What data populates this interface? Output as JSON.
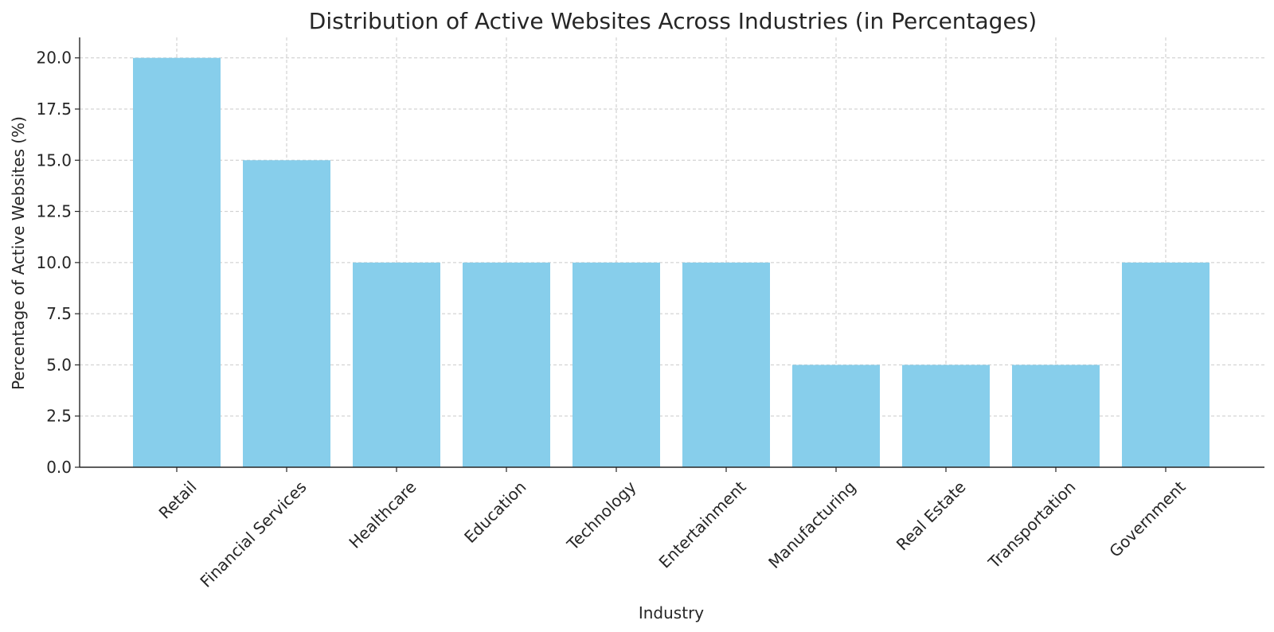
{
  "chart_data": {
    "type": "bar",
    "title": "Distribution of Active Websites Across Industries (in Percentages)",
    "xlabel": "Industry",
    "ylabel": "Percentage of Active Websites (%)",
    "categories": [
      "Retail",
      "Financial Services",
      "Healthcare",
      "Education",
      "Technology",
      "Entertainment",
      "Manufacturing",
      "Real Estate",
      "Transportation",
      "Government"
    ],
    "values": [
      20,
      15,
      10,
      10,
      10,
      10,
      5,
      5,
      5,
      10
    ],
    "ylim": [
      0,
      21
    ],
    "yticks": [
      "0.0",
      "2.5",
      "5.0",
      "7.5",
      "10.0",
      "12.5",
      "15.0",
      "17.5",
      "20.0"
    ],
    "grid": true,
    "bar_color": "#87ceeb",
    "x_tick_rotation": "45 degrees"
  }
}
